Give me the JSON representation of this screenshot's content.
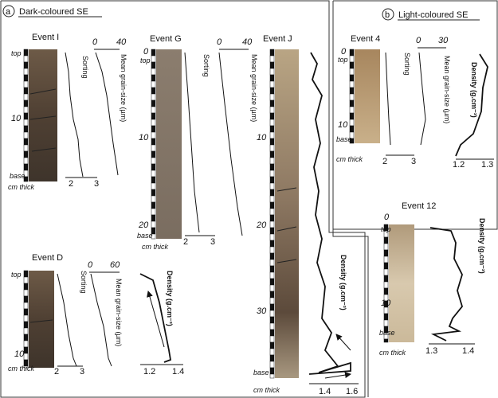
{
  "panels": [
    {
      "label": "a",
      "title": "Dark-coloured SE"
    },
    {
      "label": "b",
      "title": "Light-coloured SE"
    }
  ],
  "events": [
    {
      "name": "Event I",
      "depth_labels": [
        "top",
        "10",
        "base"
      ],
      "unit": "cm thick",
      "sorting": {
        "label": "Sorting",
        "ticks": [
          "2",
          "3"
        ]
      },
      "grain_size": {
        "label": "Mean grain-size (µm)",
        "ticks": [
          "0",
          "40"
        ]
      }
    },
    {
      "name": "Event G",
      "depth_labels": [
        "0",
        "top",
        "10",
        "20",
        "base"
      ],
      "unit": "cm thick",
      "sorting": {
        "label": "Sorting",
        "ticks": [
          "2",
          "3"
        ]
      },
      "grain_size": {
        "label": "Mean grain-size (µm)",
        "ticks": [
          "0",
          "40"
        ]
      }
    },
    {
      "name": "Event J",
      "depth_labels": [
        "10",
        "20",
        "30",
        "base"
      ],
      "unit": "cm thick",
      "density": {
        "label": "Density (g.cm⁻³)",
        "ticks": [
          "1.4",
          "1.6"
        ]
      }
    },
    {
      "name": "Event D",
      "depth_labels": [
        "top",
        "10"
      ],
      "unit": "cm thick",
      "sorting": {
        "label": "Sorting",
        "ticks": [
          "2",
          "3"
        ]
      },
      "grain_size": {
        "label": "Mean grain-size (µm)",
        "ticks": [
          "0",
          "60"
        ]
      },
      "density": {
        "label": "Density (g.cm⁻³)",
        "ticks": [
          "1.2",
          "1.4"
        ]
      }
    },
    {
      "name": "Event 4",
      "depth_labels": [
        "0",
        "top",
        "10",
        "base"
      ],
      "unit": "cm thick",
      "sorting": {
        "label": "Sorting",
        "ticks": [
          "2",
          "3"
        ]
      },
      "grain_size": {
        "label": "Mean grain-size (µm)",
        "ticks": [
          "0",
          "30"
        ]
      },
      "density": {
        "label": "Density (g.cm⁻³)",
        "ticks": [
          "1.2",
          "1.3"
        ]
      }
    },
    {
      "name": "Event 12",
      "depth_labels": [
        "0",
        "top",
        "10",
        "base"
      ],
      "unit": "cm thick",
      "density": {
        "label": "Density (g.cm⁻³)",
        "ticks": [
          "1.3",
          "1.4"
        ]
      }
    }
  ]
}
